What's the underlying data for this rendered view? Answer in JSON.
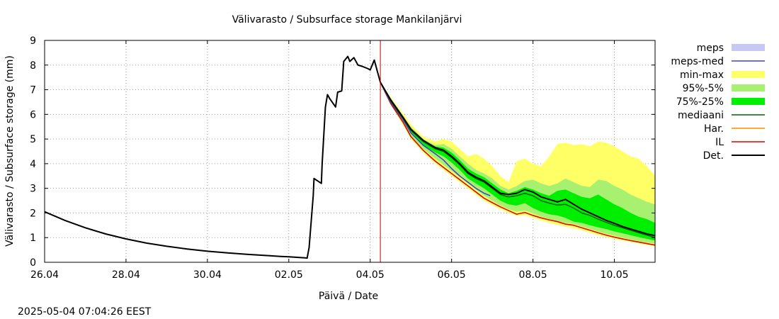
{
  "chart_data": {
    "type": "area",
    "title": "Välivarasto / Subsurface storage  Mankilanjärvi",
    "xlabel": "Päivä / Date",
    "ylabel": "Välivarasto / Subsurface storage (mm)",
    "timestamp": "2025-05-04 07:04:26 EEST",
    "xlim": [
      0,
      15
    ],
    "ylim": [
      0,
      9
    ],
    "x_ticks": [
      {
        "x": 0,
        "label": "26.04"
      },
      {
        "x": 2,
        "label": "28.04"
      },
      {
        "x": 4,
        "label": "30.04"
      },
      {
        "x": 6,
        "label": "02.05"
      },
      {
        "x": 8,
        "label": "04.05"
      },
      {
        "x": 10,
        "label": "06.05"
      },
      {
        "x": 12,
        "label": "08.05"
      },
      {
        "x": 14,
        "label": "10.05"
      }
    ],
    "y_ticks": [
      0,
      1,
      2,
      3,
      4,
      5,
      6,
      7,
      8,
      9
    ],
    "grid": true,
    "forecast_start_x": 8.25,
    "legend": [
      {
        "key": "meps",
        "label": "meps",
        "kind": "band",
        "color": "#c8c8f5"
      },
      {
        "key": "meps_med",
        "label": "meps-med",
        "kind": "line",
        "color": "#4040d0"
      },
      {
        "key": "minmax",
        "label": "min-max",
        "kind": "band",
        "color": "#ffff66"
      },
      {
        "key": "p95_5",
        "label": "95%-5%",
        "kind": "band",
        "color": "#a8f070"
      },
      {
        "key": "p75_25",
        "label": "75%-25%",
        "kind": "band",
        "color": "#00ee00"
      },
      {
        "key": "median",
        "label": "mediaani",
        "kind": "line",
        "color": "#006400"
      },
      {
        "key": "har",
        "label": "Har.",
        "kind": "line",
        "color": "#ff8c00"
      },
      {
        "key": "il",
        "label": "IL",
        "kind": "line",
        "color": "#e00000"
      },
      {
        "key": "det",
        "label": "Det.",
        "kind": "line",
        "color": "#000000"
      }
    ],
    "series": [
      {
        "name": "Det.",
        "kind": "line",
        "color": "#000000",
        "x": [
          0,
          0.5,
          1,
          1.5,
          2,
          2.5,
          3,
          3.5,
          4,
          4.5,
          5,
          5.5,
          5.8,
          6,
          6.2,
          6.4,
          6.45,
          6.5,
          6.6,
          6.62,
          6.8,
          6.82,
          6.9,
          6.95,
          7,
          7.15,
          7.2,
          7.3,
          7.35,
          7.45,
          7.5,
          7.6,
          7.7,
          7.8,
          7.95,
          8,
          8.1,
          8.25,
          8.5,
          8.8,
          9,
          9.3,
          9.6,
          9.8,
          10,
          10.2,
          10.4,
          10.6,
          10.8,
          11,
          11.2,
          11.4,
          11.6,
          11.8,
          12,
          12.2,
          12.4,
          12.6,
          12.8,
          13,
          13.2,
          13.4,
          13.6,
          13.8,
          14,
          14.2,
          14.4,
          14.6,
          14.8,
          15
        ],
        "y": [
          2.05,
          1.7,
          1.4,
          1.15,
          0.95,
          0.78,
          0.65,
          0.54,
          0.45,
          0.38,
          0.32,
          0.27,
          0.24,
          0.22,
          0.2,
          0.18,
          0.17,
          0.6,
          2.7,
          3.4,
          3.2,
          4.0,
          6.3,
          6.8,
          6.65,
          6.3,
          6.9,
          6.95,
          8.15,
          8.35,
          8.15,
          8.3,
          8.0,
          7.95,
          7.85,
          7.8,
          8.2,
          7.3,
          6.6,
          5.9,
          5.4,
          4.95,
          4.65,
          4.55,
          4.3,
          4.0,
          3.65,
          3.45,
          3.3,
          3.05,
          2.8,
          2.75,
          2.8,
          2.95,
          2.85,
          2.65,
          2.55,
          2.45,
          2.55,
          2.35,
          2.15,
          2.0,
          1.85,
          1.7,
          1.58,
          1.45,
          1.35,
          1.25,
          1.15,
          1.08
        ]
      },
      {
        "name": "mediaani",
        "kind": "line",
        "color": "#006400",
        "x": [
          8.25,
          8.5,
          8.8,
          9,
          9.3,
          9.6,
          9.8,
          10,
          10.2,
          10.4,
          10.6,
          10.8,
          11,
          11.2,
          11.4,
          11.6,
          11.8,
          12,
          12.2,
          12.4,
          12.6,
          12.8,
          13,
          13.2,
          13.4,
          13.6,
          13.8,
          14,
          14.2,
          14.4,
          14.6,
          14.8,
          15
        ],
        "y": [
          7.3,
          6.55,
          5.85,
          5.35,
          4.9,
          4.6,
          4.5,
          4.25,
          3.95,
          3.6,
          3.4,
          3.25,
          3.0,
          2.75,
          2.65,
          2.7,
          2.8,
          2.7,
          2.5,
          2.4,
          2.32,
          2.35,
          2.2,
          2.0,
          1.9,
          1.75,
          1.62,
          1.5,
          1.4,
          1.3,
          1.2,
          1.1,
          1.0
        ]
      },
      {
        "name": "meps-med",
        "kind": "line",
        "color": "#4040d0",
        "x": [
          8.25,
          8.5,
          8.8,
          9,
          9.3,
          9.6,
          9.8,
          10,
          10.2,
          10.4,
          10.6,
          10.8,
          10.95
        ],
        "y": [
          7.3,
          6.5,
          5.8,
          5.25,
          4.75,
          4.4,
          4.15,
          3.8,
          3.5,
          3.25,
          3.0,
          2.8,
          2.7
        ]
      },
      {
        "name": "Har.",
        "kind": "line",
        "color": "#ff8c00",
        "x": [
          8.25,
          8.5,
          8.8,
          9,
          9.3,
          9.6,
          9.8,
          10,
          10.2,
          10.4,
          10.6,
          10.8,
          11,
          11.2,
          11.4,
          11.6,
          11.8,
          12,
          12.2,
          12.4,
          12.6,
          12.8,
          13,
          13.2,
          13.4,
          13.6,
          13.8,
          14,
          14.2,
          14.4,
          14.6,
          14.8,
          15
        ],
        "y": [
          7.3,
          6.45,
          5.7,
          5.1,
          4.55,
          4.1,
          3.85,
          3.6,
          3.35,
          3.1,
          2.85,
          2.6,
          2.42,
          2.25,
          2.1,
          1.95,
          2.02,
          1.9,
          1.8,
          1.72,
          1.65,
          1.55,
          1.5,
          1.4,
          1.3,
          1.2,
          1.1,
          1.02,
          0.95,
          0.88,
          0.82,
          0.76,
          0.7
        ]
      },
      {
        "name": "IL",
        "kind": "line",
        "color": "#e00000",
        "x": [
          8.25,
          8.5,
          8.8,
          9,
          9.3,
          9.6,
          9.8,
          10,
          10.2,
          10.4,
          10.6,
          10.8,
          11,
          11.2,
          11.4,
          11.6,
          11.8,
          12,
          12.2,
          12.4,
          12.6,
          12.8,
          13,
          13.2,
          13.4,
          13.6,
          13.8,
          14,
          14.2,
          14.4,
          14.6,
          14.8,
          15
        ],
        "y": [
          7.3,
          6.45,
          5.7,
          5.1,
          4.55,
          4.1,
          3.85,
          3.6,
          3.35,
          3.1,
          2.85,
          2.6,
          2.42,
          2.25,
          2.1,
          1.95,
          2.02,
          1.9,
          1.8,
          1.72,
          1.65,
          1.55,
          1.5,
          1.4,
          1.3,
          1.2,
          1.1,
          1.02,
          0.95,
          0.88,
          0.82,
          0.76,
          0.7
        ]
      }
    ],
    "bands": [
      {
        "name": "min-max",
        "color": "#ffff66",
        "x": [
          8.25,
          8.5,
          8.8,
          9,
          9.3,
          9.6,
          9.8,
          10,
          10.2,
          10.4,
          10.6,
          10.8,
          11,
          11.2,
          11.4,
          11.6,
          11.8,
          12,
          12.2,
          12.4,
          12.6,
          12.8,
          13,
          13.2,
          13.4,
          13.6,
          13.8,
          14,
          14.2,
          14.4,
          14.6,
          14.8,
          15
        ],
        "low": [
          7.3,
          6.4,
          5.6,
          5.0,
          4.45,
          4.0,
          3.75,
          3.5,
          3.25,
          3.0,
          2.75,
          2.5,
          2.32,
          2.15,
          2.0,
          1.88,
          1.9,
          1.8,
          1.7,
          1.6,
          1.52,
          1.45,
          1.38,
          1.3,
          1.2,
          1.1,
          1.02,
          0.95,
          0.88,
          0.82,
          0.76,
          0.7,
          0.65
        ],
        "high": [
          7.3,
          6.7,
          6.05,
          5.6,
          5.1,
          4.9,
          5.0,
          4.9,
          4.6,
          4.3,
          4.4,
          4.2,
          3.9,
          3.5,
          3.25,
          4.1,
          4.2,
          4.0,
          3.9,
          4.3,
          4.8,
          4.85,
          4.75,
          4.8,
          4.7,
          4.9,
          4.85,
          4.7,
          4.5,
          4.3,
          4.2,
          3.9,
          3.5
        ]
      },
      {
        "name": "95%-5%",
        "color": "#a8f070",
        "x": [
          8.25,
          8.5,
          8.8,
          9,
          9.3,
          9.6,
          9.8,
          10,
          10.2,
          10.4,
          10.6,
          10.8,
          11,
          11.2,
          11.4,
          11.6,
          11.8,
          12,
          12.2,
          12.4,
          12.6,
          12.8,
          13,
          13.2,
          13.4,
          13.6,
          13.8,
          14,
          14.2,
          14.4,
          14.6,
          14.8,
          15
        ],
        "low": [
          7.3,
          6.45,
          5.7,
          5.1,
          4.6,
          4.2,
          3.95,
          3.7,
          3.45,
          3.2,
          2.95,
          2.7,
          2.5,
          2.3,
          2.15,
          2.05,
          2.1,
          1.98,
          1.85,
          1.75,
          1.68,
          1.6,
          1.55,
          1.45,
          1.35,
          1.25,
          1.15,
          1.08,
          1.0,
          0.92,
          0.85,
          0.8,
          0.75
        ],
        "high": [
          7.3,
          6.65,
          5.95,
          5.5,
          5.0,
          4.75,
          4.8,
          4.6,
          4.3,
          4.0,
          3.75,
          3.6,
          3.4,
          3.1,
          2.95,
          3.1,
          3.3,
          3.35,
          3.2,
          3.1,
          3.2,
          3.4,
          3.25,
          3.1,
          3.05,
          3.35,
          3.3,
          3.1,
          2.95,
          2.75,
          2.6,
          2.45,
          2.35
        ]
      },
      {
        "name": "75%-25%",
        "color": "#00ee00",
        "x": [
          8.25,
          8.5,
          8.8,
          9,
          9.3,
          9.6,
          9.8,
          10,
          10.2,
          10.4,
          10.6,
          10.8,
          11,
          11.2,
          11.4,
          11.6,
          11.8,
          12,
          12.2,
          12.4,
          12.6,
          12.8,
          13,
          13.2,
          13.4,
          13.6,
          13.8,
          14,
          14.2,
          14.4,
          14.6,
          14.8,
          15
        ],
        "low": [
          7.3,
          6.5,
          5.8,
          5.25,
          4.75,
          4.45,
          4.3,
          4.05,
          3.75,
          3.4,
          3.2,
          3.0,
          2.75,
          2.5,
          2.35,
          2.3,
          2.4,
          2.2,
          2.05,
          1.95,
          1.9,
          1.8,
          1.65,
          1.6,
          1.5,
          1.42,
          1.35,
          1.25,
          1.18,
          1.1,
          1.02,
          0.95,
          0.88
        ],
        "high": [
          7.3,
          6.6,
          5.9,
          5.4,
          4.95,
          4.7,
          4.65,
          4.45,
          4.15,
          3.8,
          3.6,
          3.45,
          3.2,
          2.95,
          2.8,
          2.9,
          3.05,
          2.95,
          2.8,
          2.7,
          2.9,
          2.95,
          2.8,
          2.65,
          2.6,
          2.75,
          2.55,
          2.35,
          2.2,
          2.0,
          1.85,
          1.75,
          1.6
        ]
      }
    ]
  }
}
